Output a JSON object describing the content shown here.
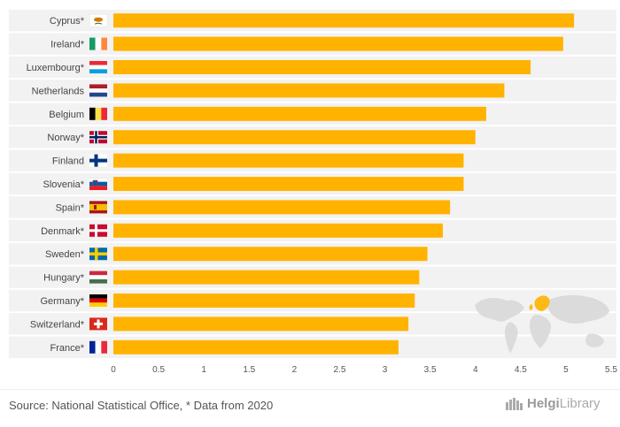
{
  "chart_data": {
    "type": "bar",
    "orientation": "horizontal",
    "categories": [
      "Cyprus*",
      "Ireland*",
      "Luxembourg*",
      "Netherlands",
      "Belgium",
      "Norway*",
      "Finland",
      "Slovenia*",
      "Spain*",
      "Denmark*",
      "Sweden*",
      "Hungary*",
      "Germany*",
      "Switzerland*",
      "France*"
    ],
    "flags": [
      "cyprus-flag",
      "ireland-flag",
      "luxembourg-flag",
      "netherlands-flag",
      "belgium-flag",
      "norway-flag",
      "finland-flag",
      "slovenia-flag",
      "spain-flag",
      "denmark-flag",
      "sweden-flag",
      "hungary-flag",
      "germany-flag",
      "switzerland-flag",
      "france-flag"
    ],
    "values": [
      5.09,
      4.97,
      4.61,
      4.32,
      4.12,
      4.0,
      3.87,
      3.87,
      3.72,
      3.64,
      3.47,
      3.38,
      3.33,
      3.26,
      3.15
    ],
    "xlim": [
      0,
      5.5
    ],
    "xticks": [
      "0",
      "0.5",
      "1",
      "1.5",
      "2",
      "2.5",
      "3",
      "3.5",
      "4",
      "4.5",
      "5",
      "5.5"
    ],
    "bar_color": "#FFB300",
    "row_band_color": "#F2F2F2"
  },
  "footer": {
    "source": "Source: National Statistical Office, * Data from 2020",
    "brand_left": "Helgi",
    "brand_right": "Library"
  }
}
